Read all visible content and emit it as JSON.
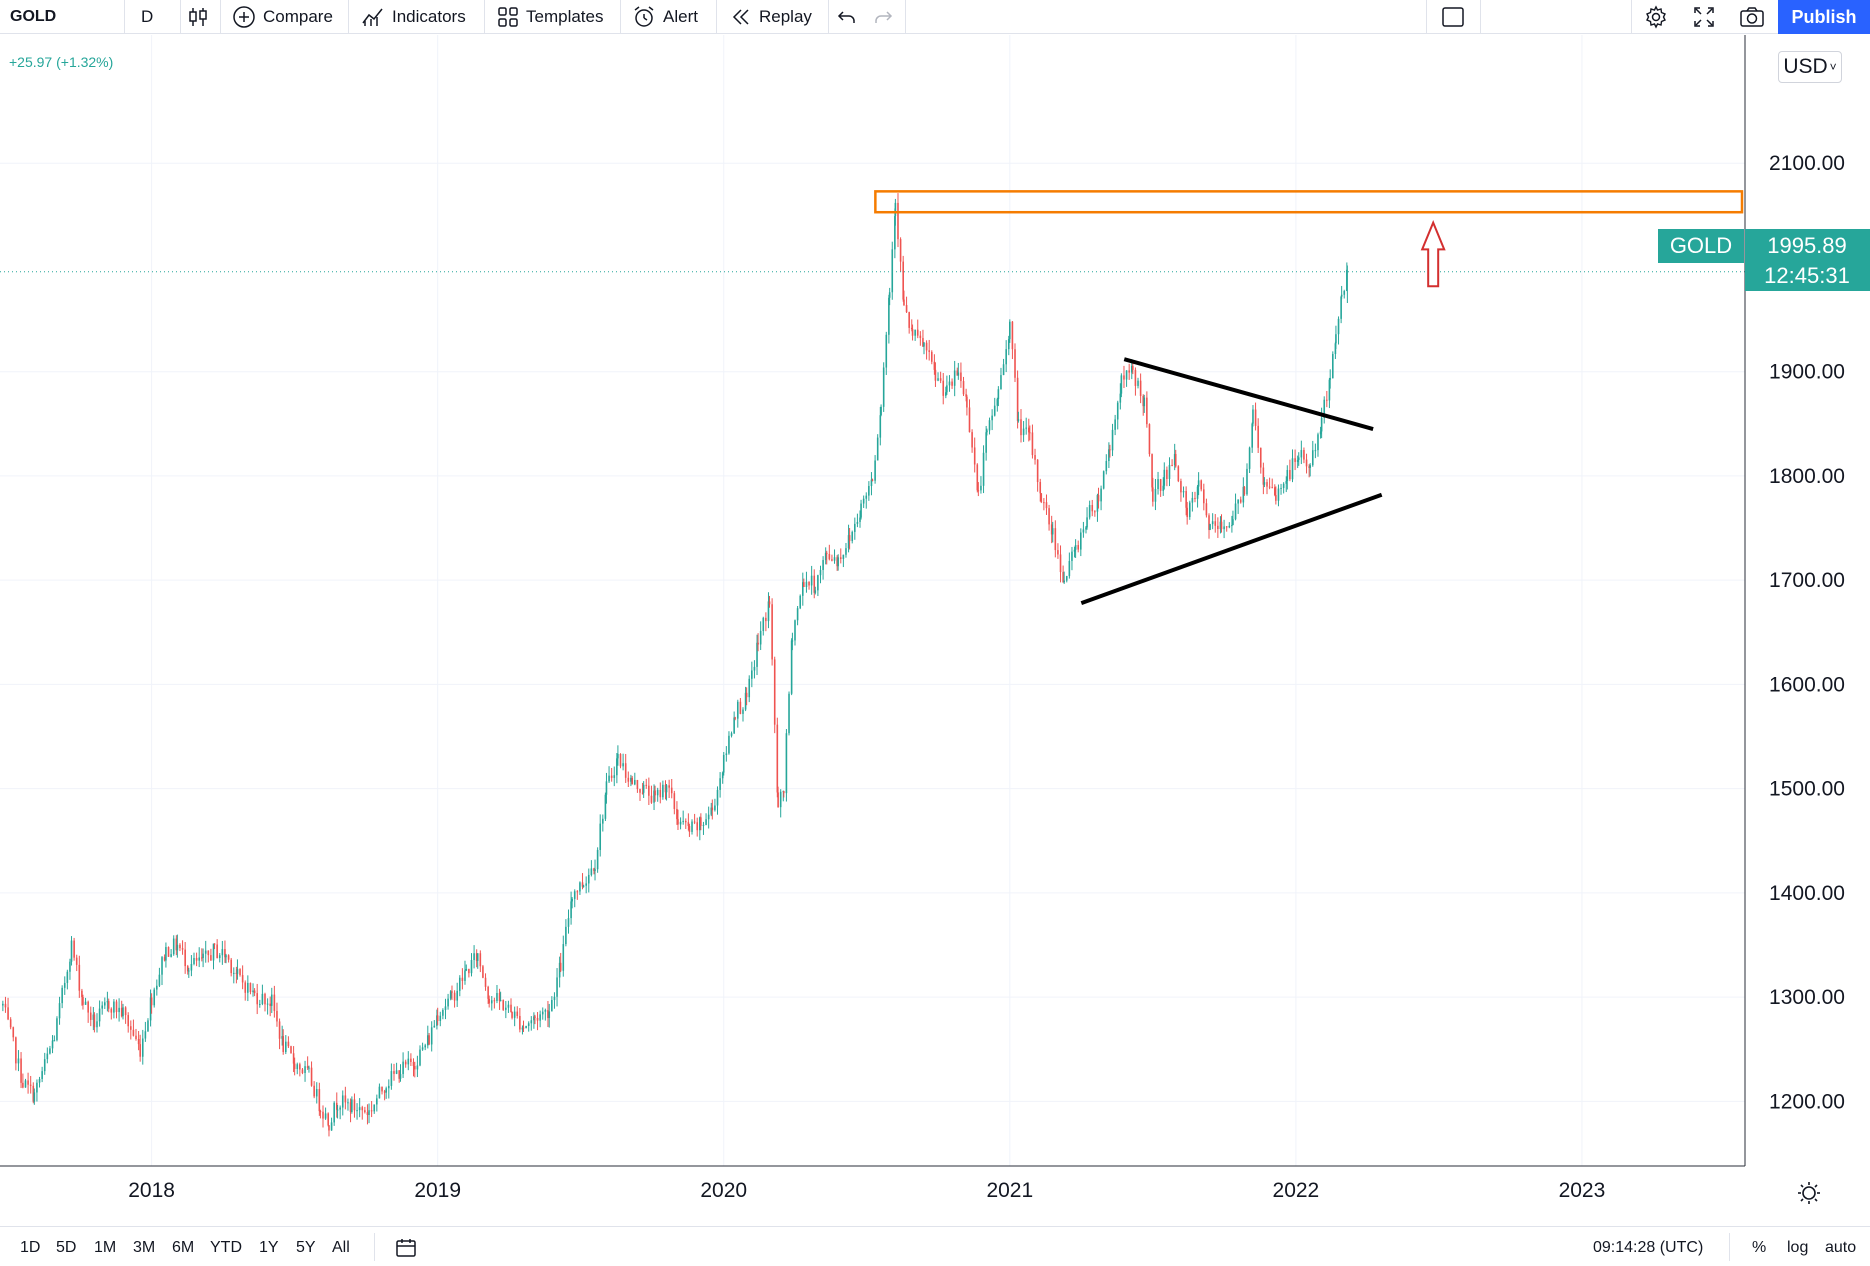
{
  "toolbar": {
    "symbol": "GOLD",
    "interval": "D",
    "compare": "Compare",
    "indicators": "Indicators",
    "templates": "Templates",
    "alert": "Alert",
    "replay": "Replay",
    "publish": "Publish"
  },
  "legend": {
    "change": "+25.97 (+1.32%)"
  },
  "currency": "USD",
  "price_tag": {
    "symbol": "GOLD",
    "price": "1995.89",
    "countdown": "12:45:31"
  },
  "bottom": {
    "ranges": [
      "1D",
      "5D",
      "1M",
      "3M",
      "6M",
      "YTD",
      "1Y",
      "5Y",
      "All"
    ],
    "clock": "09:14:28 (UTC)",
    "percent": "%",
    "log": "log",
    "auto": "auto"
  },
  "colors": {
    "up": "#26a69a",
    "down": "#ef5350",
    "zone": "#f57c00",
    "arrow": "#d32f2f",
    "trendline": "#000000",
    "accent": "#2962ff"
  },
  "chart_data": {
    "type": "candlestick",
    "ylim": [
      1138,
      2223
    ],
    "xlim": [
      2017.47,
      2023.57
    ],
    "y_ticks": [
      "1200.00",
      "1300.00",
      "1400.00",
      "1500.00",
      "1600.00",
      "1700.00",
      "1800.00",
      "1900.00",
      "2100.00"
    ],
    "x_ticks": [
      "2018",
      "2019",
      "2020",
      "2021",
      "2022",
      "2023"
    ],
    "last_price": 1995.89,
    "series": [
      {
        "values": [
          [
            2017.48,
            1292
          ],
          [
            2017.55,
            1218
          ],
          [
            2017.59,
            1206
          ],
          [
            2017.66,
            1262
          ],
          [
            2017.72,
            1350
          ],
          [
            2017.76,
            1296
          ],
          [
            2017.8,
            1275
          ],
          [
            2017.85,
            1294
          ],
          [
            2017.9,
            1285
          ],
          [
            2017.96,
            1250
          ],
          [
            2018.0,
            1300
          ],
          [
            2018.05,
            1345
          ],
          [
            2018.09,
            1350
          ],
          [
            2018.13,
            1330
          ],
          [
            2018.18,
            1335
          ],
          [
            2018.22,
            1345
          ],
          [
            2018.26,
            1340
          ],
          [
            2018.3,
            1320
          ],
          [
            2018.36,
            1302
          ],
          [
            2018.42,
            1295
          ],
          [
            2018.46,
            1253
          ],
          [
            2018.5,
            1237
          ],
          [
            2018.55,
            1225
          ],
          [
            2018.59,
            1195
          ],
          [
            2018.62,
            1180
          ],
          [
            2018.65,
            1200
          ],
          [
            2018.7,
            1195
          ],
          [
            2018.76,
            1190
          ],
          [
            2018.82,
            1218
          ],
          [
            2018.87,
            1230
          ],
          [
            2018.92,
            1238
          ],
          [
            2018.97,
            1260
          ],
          [
            2019.0,
            1285
          ],
          [
            2019.05,
            1300
          ],
          [
            2019.1,
            1325
          ],
          [
            2019.14,
            1340
          ],
          [
            2019.18,
            1300
          ],
          [
            2019.22,
            1295
          ],
          [
            2019.26,
            1285
          ],
          [
            2019.3,
            1272
          ],
          [
            2019.34,
            1280
          ],
          [
            2019.39,
            1288
          ],
          [
            2019.43,
            1330
          ],
          [
            2019.47,
            1400
          ],
          [
            2019.51,
            1410
          ],
          [
            2019.55,
            1430
          ],
          [
            2019.59,
            1500
          ],
          [
            2019.63,
            1530
          ],
          [
            2019.68,
            1505
          ],
          [
            2019.72,
            1500
          ],
          [
            2019.76,
            1490
          ],
          [
            2019.8,
            1505
          ],
          [
            2019.84,
            1470
          ],
          [
            2019.88,
            1460
          ],
          [
            2019.92,
            1465
          ],
          [
            2019.96,
            1480
          ],
          [
            2020.0,
            1525
          ],
          [
            2020.04,
            1575
          ],
          [
            2020.08,
            1585
          ],
          [
            2020.12,
            1640
          ],
          [
            2020.16,
            1680
          ],
          [
            2020.19,
            1480
          ],
          [
            2020.21,
            1500
          ],
          [
            2020.24,
            1650
          ],
          [
            2020.28,
            1700
          ],
          [
            2020.32,
            1695
          ],
          [
            2020.36,
            1725
          ],
          [
            2020.4,
            1720
          ],
          [
            2020.44,
            1740
          ],
          [
            2020.48,
            1770
          ],
          [
            2020.52,
            1800
          ],
          [
            2020.55,
            1870
          ],
          [
            2020.58,
            1980
          ],
          [
            2020.6,
            2065
          ],
          [
            2020.63,
            1960
          ],
          [
            2020.66,
            1935
          ],
          [
            2020.7,
            1925
          ],
          [
            2020.74,
            1895
          ],
          [
            2020.78,
            1880
          ],
          [
            2020.82,
            1900
          ],
          [
            2020.85,
            1870
          ],
          [
            2020.89,
            1780
          ],
          [
            2020.92,
            1840
          ],
          [
            2020.96,
            1880
          ],
          [
            2021.0,
            1945
          ],
          [
            2021.03,
            1850
          ],
          [
            2021.07,
            1835
          ],
          [
            2021.11,
            1780
          ],
          [
            2021.15,
            1745
          ],
          [
            2021.19,
            1700
          ],
          [
            2021.23,
            1730
          ],
          [
            2021.27,
            1760
          ],
          [
            2021.31,
            1780
          ],
          [
            2021.35,
            1830
          ],
          [
            2021.39,
            1890
          ],
          [
            2021.43,
            1900
          ],
          [
            2021.47,
            1870
          ],
          [
            2021.5,
            1780
          ],
          [
            2021.54,
            1800
          ],
          [
            2021.58,
            1815
          ],
          [
            2021.62,
            1760
          ],
          [
            2021.66,
            1790
          ],
          [
            2021.7,
            1750
          ],
          [
            2021.74,
            1750
          ],
          [
            2021.78,
            1760
          ],
          [
            2021.82,
            1790
          ],
          [
            2021.85,
            1860
          ],
          [
            2021.89,
            1790
          ],
          [
            2021.93,
            1780
          ],
          [
            2021.97,
            1800
          ],
          [
            2022.01,
            1820
          ],
          [
            2022.05,
            1810
          ],
          [
            2022.09,
            1850
          ],
          [
            2022.12,
            1900
          ],
          [
            2022.14,
            1930
          ],
          [
            2022.16,
            1976
          ],
          [
            2022.18,
            1996
          ]
        ]
      }
    ],
    "annotations": {
      "resistance_zone": [
        2053,
        2073
      ],
      "triangle_upper": [
        [
          2021.4,
          1912
        ],
        [
          2022.27,
          1845
        ]
      ],
      "triangle_lower": [
        [
          2021.25,
          1678
        ],
        [
          2022.3,
          1782
        ]
      ],
      "breakout_arrow": {
        "x": 2022.48,
        "y_base": 1982,
        "y_tip": 2043
      }
    }
  }
}
